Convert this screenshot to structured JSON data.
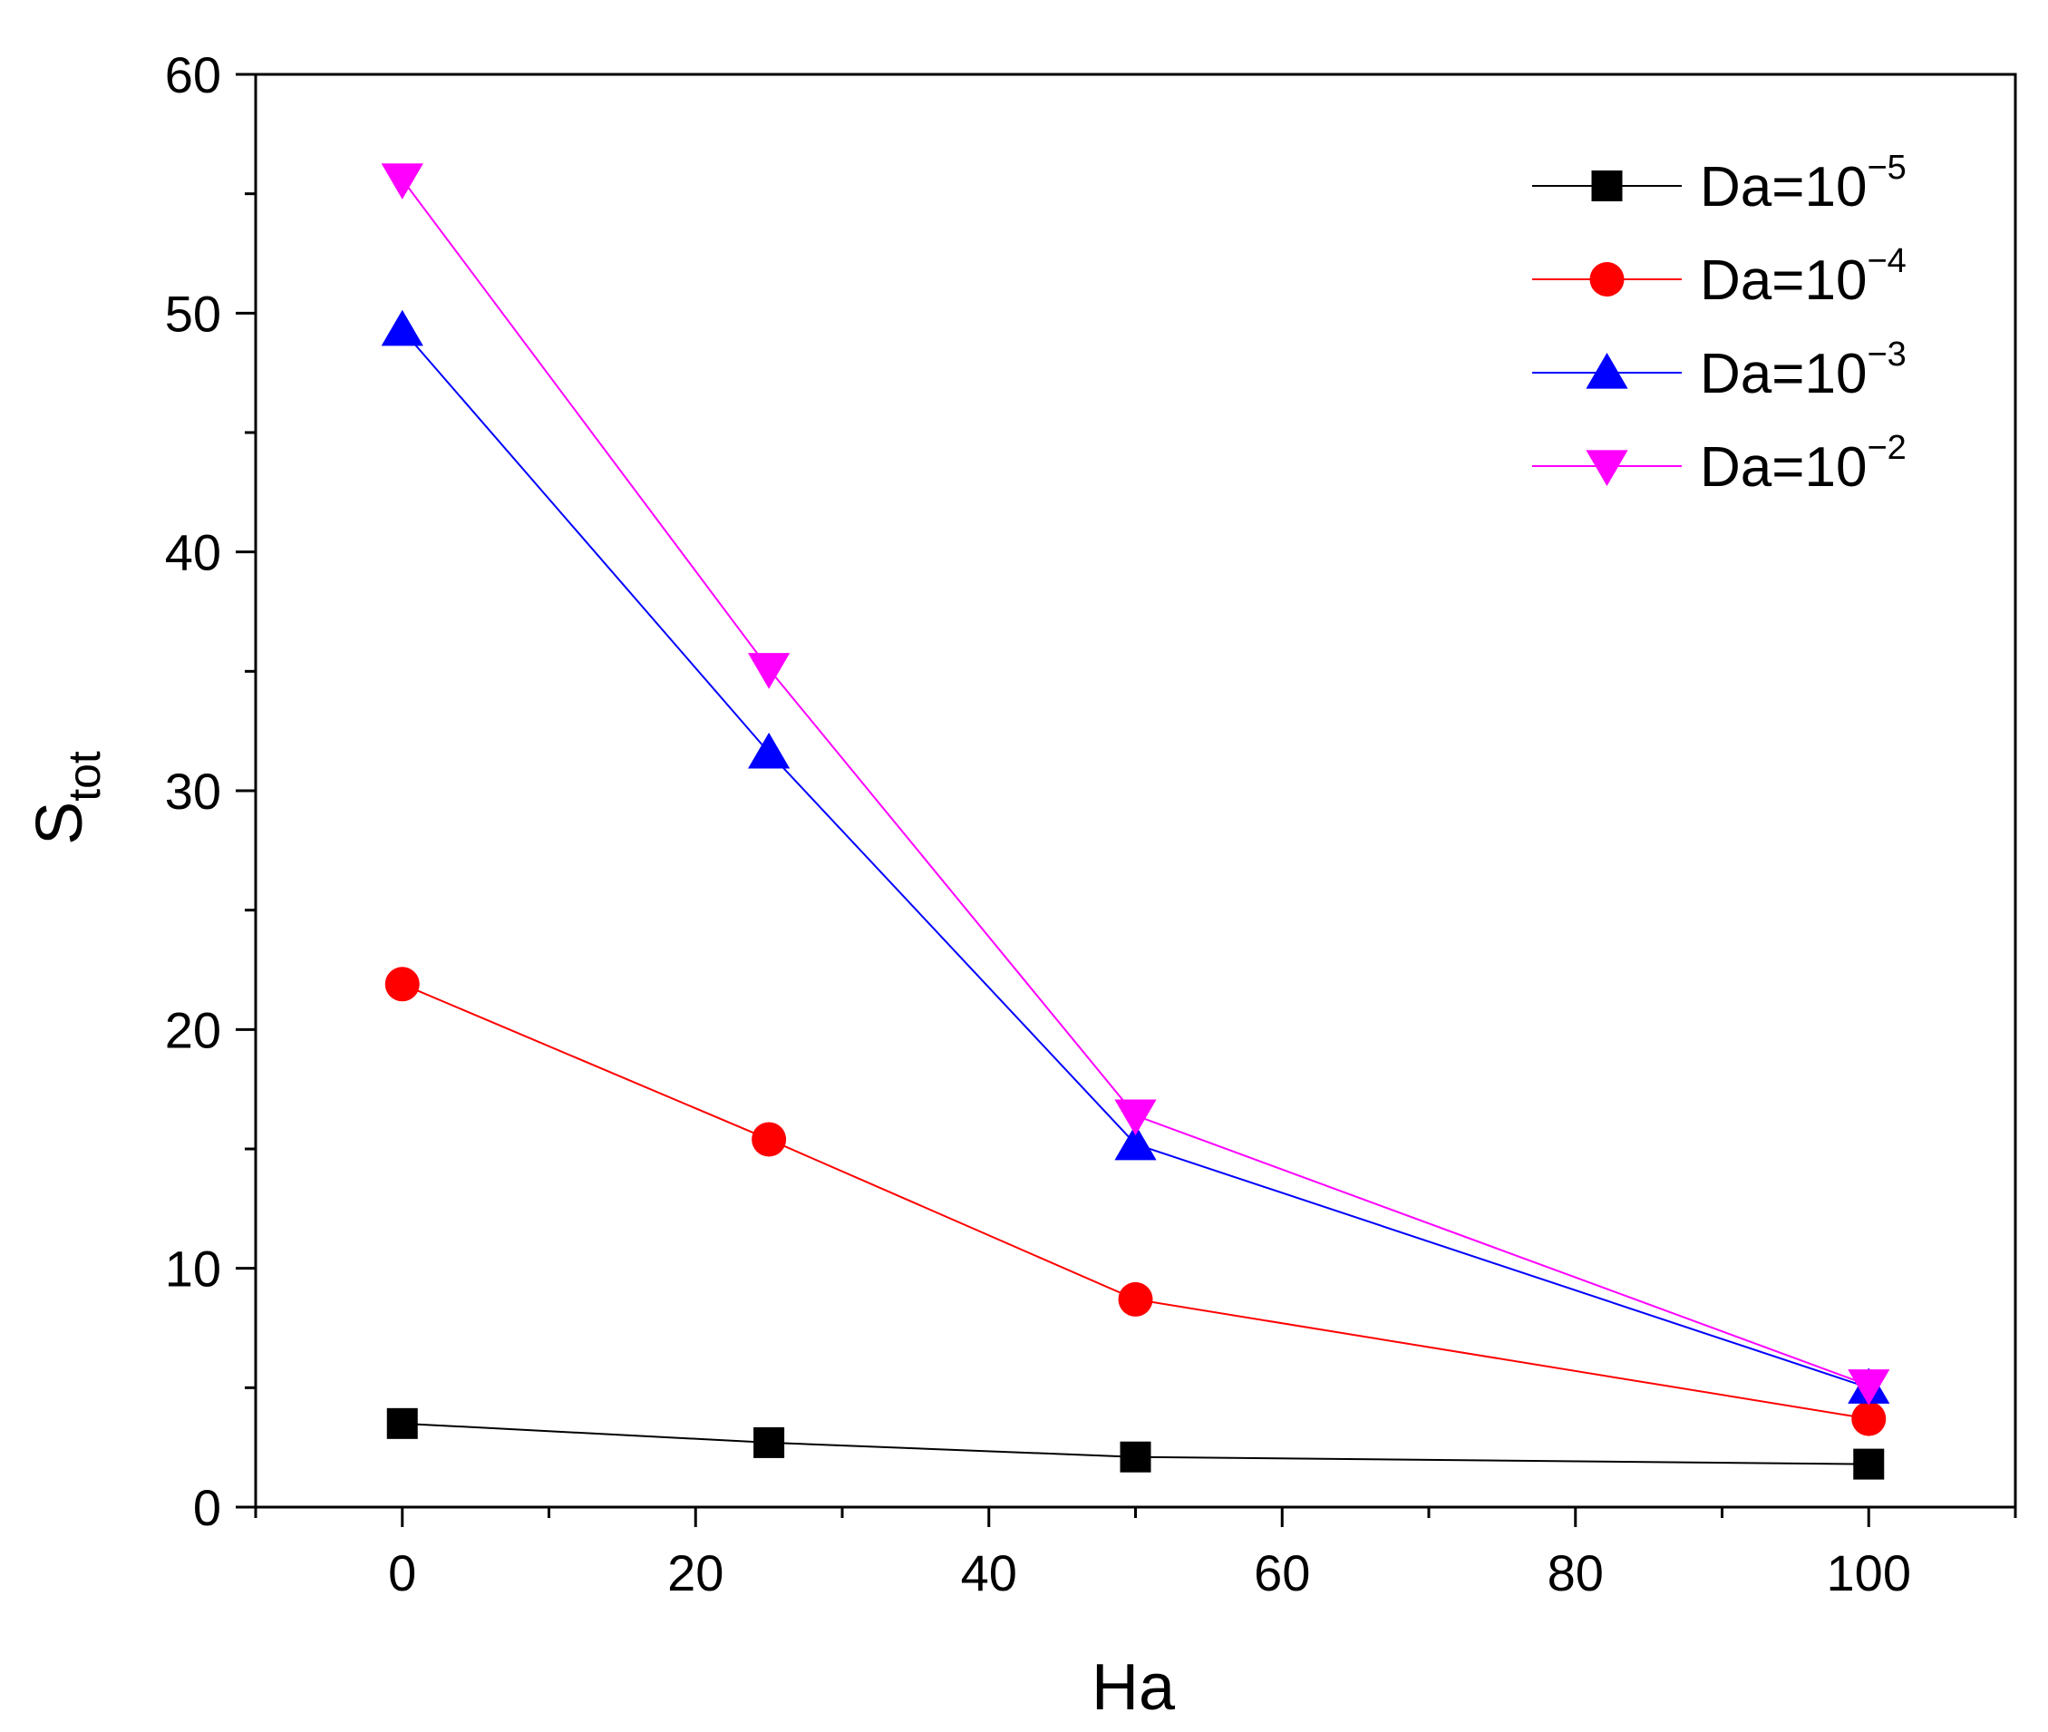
{
  "chart_data": {
    "type": "line",
    "title": "",
    "xlabel": "Ha",
    "ylabel": {
      "main": "S",
      "sub": "tot"
    },
    "x": [
      0,
      25,
      50,
      100
    ],
    "xlim": [
      -10,
      110
    ],
    "ylim": [
      0,
      60
    ],
    "xticks": [
      0,
      20,
      40,
      60,
      80,
      100
    ],
    "yticks": [
      0,
      10,
      20,
      30,
      40,
      50,
      60
    ],
    "xtick_labels": [
      "0",
      "20",
      "40",
      "60",
      "80",
      "100"
    ],
    "ytick_labels": [
      "0",
      "10",
      "20",
      "30",
      "40",
      "50",
      "60"
    ],
    "grid": false,
    "legend_position": "top-right",
    "series": [
      {
        "name": "Da=10⁻⁵",
        "label_base": "Da=10",
        "label_exp": "−5",
        "color": "#000000",
        "marker": "square",
        "values": [
          3.5,
          2.7,
          2.1,
          1.8
        ]
      },
      {
        "name": "Da=10⁻⁴",
        "label_base": "Da=10",
        "label_exp": "−4",
        "color": "#ff0000",
        "marker": "circle",
        "values": [
          21.9,
          15.4,
          8.7,
          3.7
        ]
      },
      {
        "name": "Da=10⁻³",
        "label_base": "Da=10",
        "label_exp": "−3",
        "color": "#0000ff",
        "marker": "triangle-up",
        "values": [
          49.3,
          31.6,
          15.2,
          5.0
        ]
      },
      {
        "name": "Da=10⁻²",
        "label_base": "Da=10",
        "label_exp": "−2",
        "color": "#ff00ff",
        "marker": "triangle-down",
        "values": [
          55.6,
          35.1,
          16.4,
          5.1
        ]
      }
    ]
  }
}
